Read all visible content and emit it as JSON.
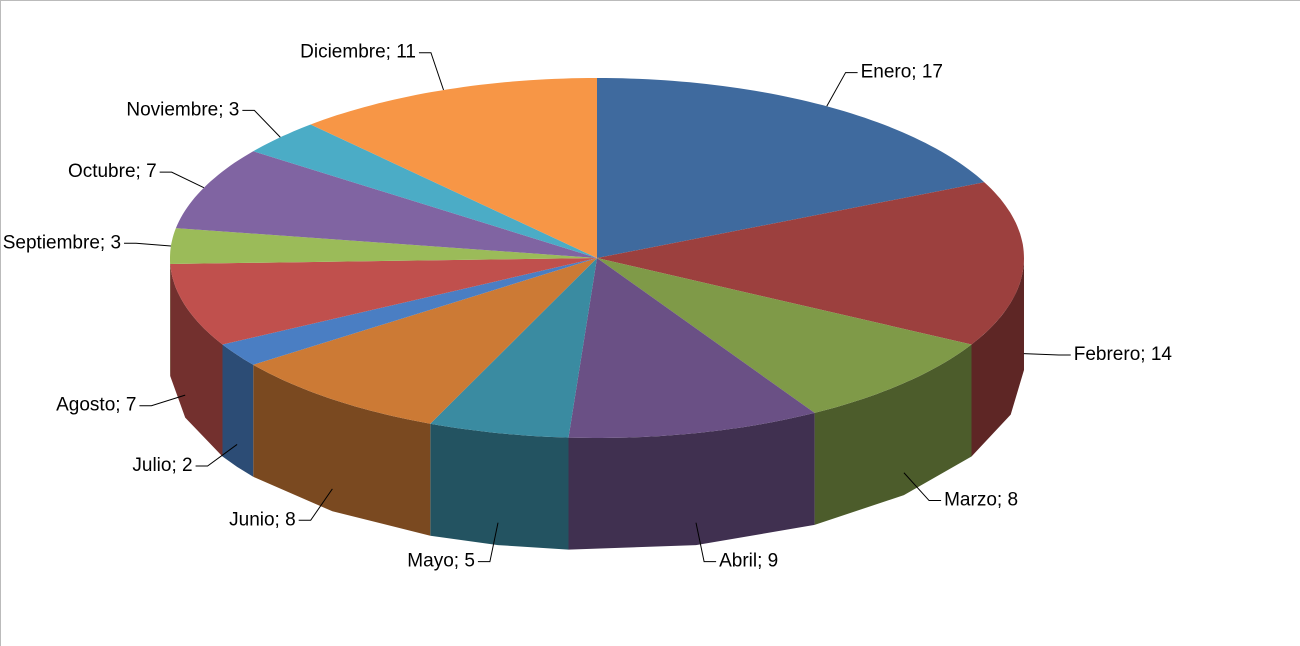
{
  "chart_data": {
    "type": "pie",
    "categories": [
      "Enero",
      "Febrero",
      "Marzo",
      "Abril",
      "Mayo",
      "Junio",
      "Julio",
      "Agosto",
      "Septiembre",
      "Octubre",
      "Noviembre",
      "Diciembre"
    ],
    "values": [
      17,
      14,
      8,
      9,
      5,
      8,
      2,
      7,
      3,
      7,
      3,
      11
    ],
    "value_labels": [
      "Enero; 17",
      "Febrero; 14",
      "Marzo; 8",
      "Abril; 9",
      "Mayo; 5",
      "Junio; 8",
      "Julio; 2",
      "Agosto; 7",
      "Septiembre; 3",
      "Octubre; 7",
      "Noviembre; 3",
      "Diciembre; 11"
    ],
    "colors": [
      "#3f6a9e",
      "#9c403e",
      "#7f9a48",
      "#6a5085",
      "#3a8ba1",
      "#cc7a35",
      "#4a7ec3",
      "#c0504d",
      "#9bbb59",
      "#8064a2",
      "#4bacc6",
      "#f79646"
    ]
  }
}
